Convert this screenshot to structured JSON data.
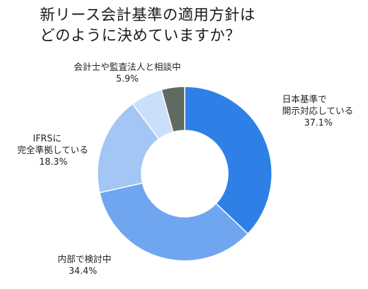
{
  "chart_data": {
    "type": "pie",
    "title_lines": [
      "新リース会計基準の適用方針は",
      "どのように決めていますか？"
    ],
    "slices": [
      {
        "label_lines": [
          "日本基準で",
          "開示対応している"
        ],
        "value": 37.1,
        "value_label": "37.1%",
        "color": "#2f80e6"
      },
      {
        "label_lines": [
          "内部で検討中"
        ],
        "value": 34.4,
        "value_label": "34.4%",
        "color": "#6fa6ef"
      },
      {
        "label_lines": [
          "IFRSに",
          "完全準拠している"
        ],
        "value": 18.3,
        "value_label": "18.3%",
        "color": "#a3c6f5"
      },
      {
        "label_lines": [
          "会計士や監査法人と相談中"
        ],
        "value": 5.9,
        "value_label": "5.9%",
        "color": "#c9dffa"
      },
      {
        "label_lines": [],
        "value": 4.3,
        "value_label": "",
        "color": "#5f6a60"
      }
    ]
  }
}
